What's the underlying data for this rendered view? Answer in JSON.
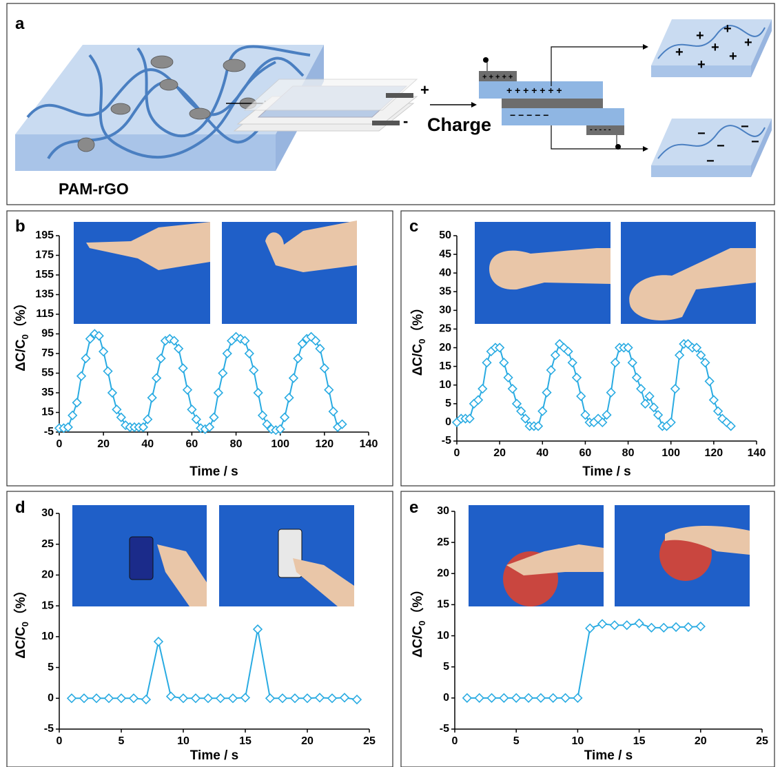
{
  "diagram": {
    "label": "a",
    "material": "PAM-rGO",
    "process": "Charge",
    "plus": "+",
    "minus": "-",
    "top_charges": "+ + + + +",
    "middle_charges": "+ + + + + + +",
    "lower_charges": "− − − − −",
    "bottom_charges": "- - - - -",
    "minus_sign": "−"
  },
  "chart_data": [
    {
      "type": "line",
      "panel": "b",
      "xlabel": "Time / s",
      "ylabel": "ΔC/C",
      "ylabel_sub": "0",
      "ylabel_unit": "（%）",
      "color": "#29abe2",
      "marker": "diamond",
      "x": [
        0,
        2,
        4,
        6,
        8,
        10,
        12,
        14,
        16,
        18,
        20,
        22,
        24,
        26,
        28,
        30,
        32,
        34,
        36,
        38,
        40,
        42,
        44,
        46,
        48,
        50,
        52,
        54,
        56,
        58,
        60,
        62,
        64,
        66,
        68,
        70,
        72,
        74,
        76,
        78,
        80,
        82,
        84,
        86,
        88,
        90,
        92,
        94,
        96,
        98,
        100,
        102,
        104,
        106,
        108,
        110,
        112,
        114,
        116,
        118,
        120,
        122,
        124,
        126,
        128
      ],
      "values": [
        -1,
        -1,
        0,
        12,
        25,
        52,
        70,
        90,
        95,
        93,
        77,
        57,
        35,
        18,
        10,
        2,
        0,
        0,
        0,
        0,
        8,
        30,
        50,
        70,
        88,
        90,
        88,
        80,
        60,
        38,
        18,
        8,
        -1,
        -2,
        0,
        10,
        35,
        55,
        75,
        88,
        92,
        90,
        88,
        75,
        58,
        35,
        12,
        3,
        -2,
        -3,
        -2,
        10,
        30,
        50,
        70,
        85,
        90,
        92,
        88,
        80,
        60,
        38,
        16,
        0,
        3
      ],
      "xlim": [
        0,
        140
      ],
      "ylim": [
        -5,
        195
      ],
      "xticks": [
        0,
        20,
        40,
        60,
        80,
        100,
        120,
        140
      ],
      "yticks": [
        -5,
        15,
        35,
        55,
        75,
        95,
        115,
        135,
        155,
        175,
        195
      ]
    },
    {
      "type": "line",
      "panel": "c",
      "xlabel": "Time / s",
      "ylabel": "ΔC/C",
      "ylabel_sub": "0",
      "ylabel_unit": "（%）",
      "color": "#29abe2",
      "marker": "diamond",
      "x": [
        0,
        2,
        4,
        6,
        8,
        10,
        12,
        14,
        16,
        18,
        20,
        22,
        24,
        26,
        28,
        30,
        32,
        34,
        36,
        38,
        40,
        42,
        44,
        46,
        48,
        50,
        52,
        54,
        56,
        58,
        60,
        62,
        64,
        66,
        68,
        70,
        72,
        74,
        76,
        78,
        80,
        82,
        84,
        86,
        88,
        90,
        92,
        94,
        96,
        98,
        100,
        102,
        104,
        106,
        108,
        110,
        112,
        114,
        116,
        118,
        120,
        122,
        124,
        126,
        128
      ],
      "values": [
        0,
        1,
        1,
        1,
        5,
        6,
        9,
        16,
        19,
        20,
        20,
        16,
        12,
        9,
        5,
        3,
        1,
        -1,
        -1,
        -1,
        3,
        8,
        14,
        18,
        21,
        20,
        19,
        16,
        12,
        7,
        2,
        0,
        0,
        1,
        0,
        2,
        8,
        16,
        20,
        20,
        20,
        16,
        12,
        9,
        5,
        7,
        4,
        2,
        -1,
        -1,
        0,
        9,
        18,
        21,
        21,
        20,
        20,
        18,
        16,
        11,
        6,
        3,
        1,
        0,
        -1
      ],
      "xlim": [
        0,
        140
      ],
      "ylim": [
        -5,
        50
      ],
      "xticks": [
        0,
        20,
        40,
        60,
        80,
        100,
        120,
        140
      ],
      "yticks": [
        -5,
        0,
        5,
        10,
        15,
        20,
        25,
        30,
        35,
        40,
        45,
        50
      ]
    },
    {
      "type": "line",
      "panel": "d",
      "xlabel": "Time / s",
      "ylabel": "ΔC/C",
      "ylabel_sub": "0",
      "ylabel_unit": "（%）",
      "color": "#29abe2",
      "marker": "diamond",
      "x": [
        1,
        2,
        3,
        4,
        5,
        6,
        7,
        8,
        9,
        10,
        11,
        12,
        13,
        14,
        15,
        16,
        17,
        18,
        19,
        20,
        21,
        22,
        23,
        24
      ],
      "values": [
        0,
        0,
        0,
        0,
        0,
        0,
        -0.2,
        9.2,
        0.3,
        0,
        0,
        0,
        0,
        0,
        0.1,
        11.2,
        0,
        0,
        0,
        0,
        0.1,
        0,
        0.1,
        -0.2
      ],
      "xlim": [
        0,
        25
      ],
      "ylim": [
        -5,
        30
      ],
      "xticks": [
        0,
        5,
        10,
        15,
        20,
        25
      ],
      "yticks": [
        -5,
        0,
        5,
        10,
        15,
        20,
        25,
        30
      ]
    },
    {
      "type": "line",
      "panel": "e",
      "xlabel": "Time / s",
      "ylabel": "ΔC/C",
      "ylabel_sub": "0",
      "ylabel_unit": "（%）",
      "color": "#29abe2",
      "marker": "diamond",
      "x": [
        1,
        2,
        3,
        4,
        5,
        6,
        7,
        8,
        9,
        10,
        11,
        12,
        13,
        14,
        15,
        16,
        17,
        18,
        19,
        20
      ],
      "values": [
        0,
        0,
        0,
        0,
        0,
        0,
        0,
        0,
        0,
        0,
        11.2,
        11.9,
        11.7,
        11.7,
        12,
        11.3,
        11.3,
        11.4,
        11.4,
        11.5
      ],
      "xlim": [
        0,
        25
      ],
      "ylim": [
        -5,
        30
      ],
      "xticks": [
        0,
        5,
        10,
        15,
        20,
        25
      ],
      "yticks": [
        -5,
        0,
        5,
        10,
        15,
        20,
        25,
        30
      ]
    }
  ]
}
